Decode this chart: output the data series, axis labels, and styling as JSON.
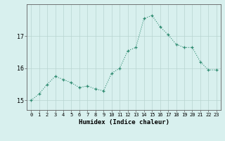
{
  "x": [
    0,
    1,
    2,
    3,
    4,
    5,
    6,
    7,
    8,
    9,
    10,
    11,
    12,
    13,
    14,
    15,
    16,
    17,
    18,
    19,
    20,
    21,
    22,
    23
  ],
  "y": [
    15.0,
    15.2,
    15.5,
    15.75,
    15.65,
    15.55,
    15.4,
    15.45,
    15.35,
    15.3,
    15.85,
    16.0,
    16.55,
    16.65,
    17.55,
    17.65,
    17.3,
    17.05,
    16.75,
    16.65,
    16.65,
    16.2,
    15.95,
    15.95
  ],
  "line_color": "#2e8b70",
  "marker": "+",
  "marker_size": 3,
  "background_color": "#d8f0ee",
  "grid_color": "#b8d4d0",
  "axis_color": "#606060",
  "xlabel": "Humidex (Indice chaleur)",
  "ylim": [
    14.7,
    18.0
  ],
  "xlim": [
    -0.5,
    23.5
  ],
  "yticks": [
    15,
    16,
    17
  ],
  "xticks": [
    0,
    1,
    2,
    3,
    4,
    5,
    6,
    7,
    8,
    9,
    10,
    11,
    12,
    13,
    14,
    15,
    16,
    17,
    18,
    19,
    20,
    21,
    22,
    23
  ]
}
